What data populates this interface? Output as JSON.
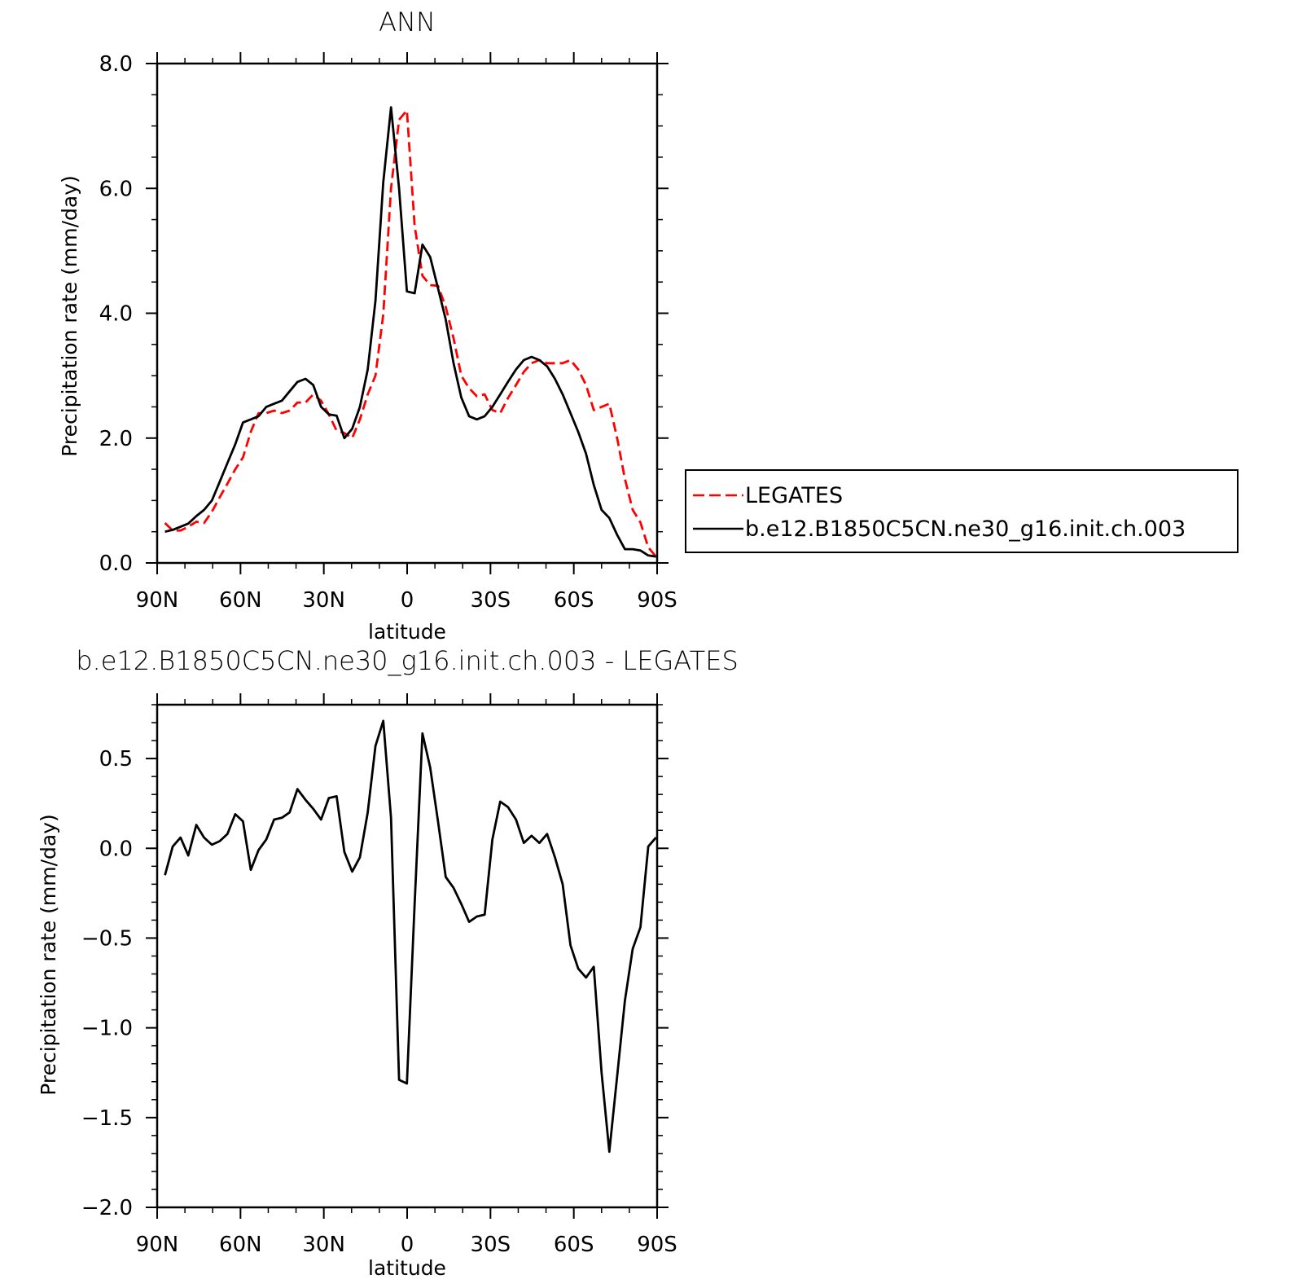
{
  "chart_data": [
    {
      "type": "line",
      "title": "ANN",
      "xlabel": "latitude",
      "ylabel": "Precipitation rate (mm/day)",
      "xlim": [
        90,
        -90
      ],
      "ylim": [
        0,
        8
      ],
      "xticks": [
        {
          "value": 90,
          "label": "90N"
        },
        {
          "value": 60,
          "label": "60N"
        },
        {
          "value": 30,
          "label": "30N"
        },
        {
          "value": 0,
          "label": "0"
        },
        {
          "value": -30,
          "label": "30S"
        },
        {
          "value": -60,
          "label": "60S"
        },
        {
          "value": -90,
          "label": "90S"
        }
      ],
      "yticks": [
        {
          "value": 0,
          "label": "0.0"
        },
        {
          "value": 2,
          "label": "2.0"
        },
        {
          "value": 4,
          "label": "4.0"
        },
        {
          "value": 6,
          "label": "6.0"
        },
        {
          "value": 8,
          "label": "8.0"
        }
      ],
      "legend_position": "right",
      "series": [
        {
          "name": "LEGATES",
          "color": "#ff0000",
          "dash": "dashed",
          "x": [
            87.2,
            84.4,
            81.6,
            78.8,
            75.9,
            73.1,
            70.3,
            67.5,
            64.7,
            61.9,
            59.1,
            56.3,
            53.5,
            50.7,
            47.9,
            45.1,
            42.3,
            39.5,
            36.6,
            33.8,
            31.0,
            28.2,
            25.4,
            22.6,
            19.8,
            17.0,
            14.2,
            11.4,
            8.6,
            5.8,
            2.9,
            0.1,
            -2.7,
            -5.5,
            -8.3,
            -11.1,
            -13.9,
            -16.7,
            -19.5,
            -22.3,
            -25.1,
            -27.9,
            -30.7,
            -33.5,
            -36.3,
            -39.2,
            -42.0,
            -44.8,
            -47.6,
            -50.4,
            -53.2,
            -56.0,
            -58.8,
            -61.6,
            -64.4,
            -67.2,
            -70.0,
            -72.8,
            -75.6,
            -78.4,
            -81.2,
            -84.0,
            -86.8,
            -89.6
          ],
          "y": [
            0.64,
            0.52,
            0.52,
            0.58,
            0.66,
            0.64,
            0.82,
            1.05,
            1.27,
            1.5,
            1.69,
            2.1,
            2.4,
            2.4,
            2.44,
            2.4,
            2.44,
            2.57,
            2.57,
            2.7,
            2.6,
            2.38,
            2.12,
            2.08,
            2.0,
            2.3,
            2.7,
            3.0,
            3.98,
            6.0,
            7.1,
            7.25,
            5.4,
            4.6,
            4.45,
            4.44,
            4.1,
            3.6,
            3.0,
            2.8,
            2.67,
            2.7,
            2.45,
            2.4,
            2.64,
            2.85,
            3.06,
            3.2,
            3.25,
            3.2,
            3.2,
            3.2,
            3.25,
            3.1,
            2.85,
            2.45,
            2.5,
            2.55,
            2.0,
            1.35,
            0.85,
            0.65,
            0.25,
            0.1
          ]
        },
        {
          "name": "b.e12.B1850C5CN.ne30_g16.init.ch.003",
          "color": "#000000",
          "dash": "solid",
          "x": [
            87.2,
            84.4,
            81.6,
            78.8,
            75.9,
            73.1,
            70.3,
            67.5,
            64.7,
            61.9,
            59.1,
            56.3,
            53.5,
            50.7,
            47.9,
            45.1,
            42.3,
            39.5,
            36.6,
            33.8,
            31.0,
            28.2,
            25.4,
            22.6,
            19.8,
            17.0,
            14.2,
            11.4,
            8.6,
            5.8,
            2.9,
            0.1,
            -2.7,
            -5.5,
            -8.3,
            -11.1,
            -13.9,
            -16.7,
            -19.5,
            -22.3,
            -25.1,
            -27.9,
            -30.7,
            -33.5,
            -36.3,
            -39.2,
            -42.0,
            -44.8,
            -47.6,
            -50.4,
            -53.2,
            -56.0,
            -58.8,
            -61.6,
            -64.4,
            -67.2,
            -70.0,
            -72.8,
            -75.6,
            -78.4,
            -81.2,
            -84.0,
            -86.8,
            -89.6
          ],
          "y": [
            0.5,
            0.53,
            0.58,
            0.63,
            0.75,
            0.85,
            1.0,
            1.3,
            1.6,
            1.9,
            2.25,
            2.3,
            2.35,
            2.5,
            2.55,
            2.6,
            2.75,
            2.9,
            2.95,
            2.85,
            2.5,
            2.38,
            2.36,
            2.0,
            2.15,
            2.5,
            3.1,
            4.2,
            6.1,
            7.3,
            6.0,
            4.35,
            4.32,
            5.1,
            4.9,
            4.4,
            3.9,
            3.2,
            2.65,
            2.35,
            2.3,
            2.35,
            2.5,
            2.7,
            2.9,
            3.1,
            3.25,
            3.3,
            3.25,
            3.15,
            2.95,
            2.7,
            2.4,
            2.1,
            1.75,
            1.25,
            0.85,
            0.72,
            0.45,
            0.22,
            0.22,
            0.2,
            0.12,
            0.1
          ]
        }
      ]
    },
    {
      "type": "line",
      "title": "b.e12.B1850C5CN.ne30_g16.init.ch.003 - LEGATES",
      "xlabel": "latitude",
      "ylabel": "Precipitation rate (mm/day)",
      "xlim": [
        90,
        -90
      ],
      "ylim": [
        -2.0,
        0.8
      ],
      "xticks": [
        {
          "value": 90,
          "label": "90N"
        },
        {
          "value": 60,
          "label": "60N"
        },
        {
          "value": 30,
          "label": "30N"
        },
        {
          "value": 0,
          "label": "0"
        },
        {
          "value": -30,
          "label": "30S"
        },
        {
          "value": -60,
          "label": "60S"
        },
        {
          "value": -90,
          "label": "90S"
        }
      ],
      "yticks": [
        {
          "value": 0.5,
          "label": "0.5"
        },
        {
          "value": 0.0,
          "label": "0.0"
        },
        {
          "value": -0.5,
          "label": "−0.5"
        },
        {
          "value": -1.0,
          "label": "−1.0"
        },
        {
          "value": -1.5,
          "label": "−1.5"
        },
        {
          "value": -2.0,
          "label": "−2.0"
        }
      ],
      "series": [
        {
          "color": "#000000",
          "dash": "solid",
          "x": [
            87.2,
            84.4,
            81.6,
            78.8,
            75.9,
            73.1,
            70.3,
            67.5,
            64.7,
            61.9,
            59.1,
            56.3,
            53.5,
            50.7,
            47.9,
            45.1,
            42.3,
            39.5,
            36.6,
            33.8,
            31.0,
            28.2,
            25.4,
            22.6,
            19.8,
            17.0,
            14.2,
            11.4,
            8.6,
            5.8,
            2.9,
            0.1,
            -2.7,
            -5.5,
            -8.3,
            -11.1,
            -13.9,
            -16.7,
            -19.5,
            -22.3,
            -25.1,
            -27.9,
            -30.7,
            -33.5,
            -36.3,
            -39.2,
            -42.0,
            -44.8,
            -47.6,
            -50.4,
            -53.2,
            -56.0,
            -58.8,
            -61.6,
            -64.4,
            -67.2,
            -70.0,
            -72.8,
            -75.6,
            -78.4,
            -81.2,
            -84.0,
            -86.8,
            -89.6
          ],
          "y": [
            -0.15,
            0.01,
            0.06,
            -0.04,
            0.13,
            0.06,
            0.02,
            0.04,
            0.08,
            0.19,
            0.15,
            -0.12,
            -0.01,
            0.05,
            0.16,
            0.17,
            0.2,
            0.33,
            0.27,
            0.22,
            0.16,
            0.28,
            0.29,
            -0.02,
            -0.13,
            -0.05,
            0.2,
            0.57,
            0.71,
            0.17,
            -1.29,
            -1.31,
            -0.31,
            0.64,
            0.45,
            0.15,
            -0.16,
            -0.22,
            -0.31,
            -0.41,
            -0.38,
            -0.37,
            0.05,
            0.26,
            0.23,
            0.16,
            0.03,
            0.07,
            0.03,
            0.08,
            -0.05,
            -0.2,
            -0.54,
            -0.67,
            -0.72,
            -0.66,
            -1.25,
            -1.69,
            -1.27,
            -0.85,
            -0.56,
            -0.44,
            0.01,
            0.06
          ]
        }
      ]
    }
  ]
}
